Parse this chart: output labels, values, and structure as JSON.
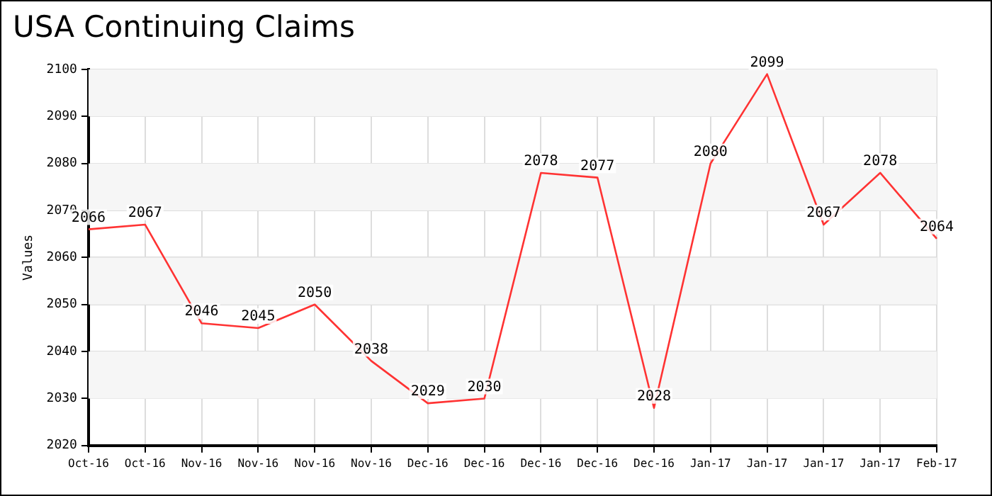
{
  "chart_data": {
    "type": "line",
    "title": "USA Continuing Claims",
    "ylabel": "Values",
    "categories": [
      "Oct-16",
      "Oct-16",
      "Nov-16",
      "Nov-16",
      "Nov-16",
      "Nov-16",
      "Dec-16",
      "Dec-16",
      "Dec-16",
      "Dec-16",
      "Dec-16",
      "Jan-17",
      "Jan-17",
      "Jan-17",
      "Jan-17",
      "Feb-17"
    ],
    "series": [
      {
        "color": "#ff3333",
        "values": [
          2066,
          2067,
          2046,
          2045,
          2050,
          2038,
          2029,
          2030,
          2078,
          2077,
          2028,
          2080,
          2099,
          2067,
          2078,
          2064
        ]
      }
    ],
    "ylim": [
      2020,
      2100
    ],
    "yticks": [
      2020,
      2030,
      2040,
      2050,
      2060,
      2070,
      2080,
      2090,
      2100
    ],
    "grid": true,
    "legend": false,
    "marker": "none",
    "line_style": "solid",
    "data_labels": true
  }
}
